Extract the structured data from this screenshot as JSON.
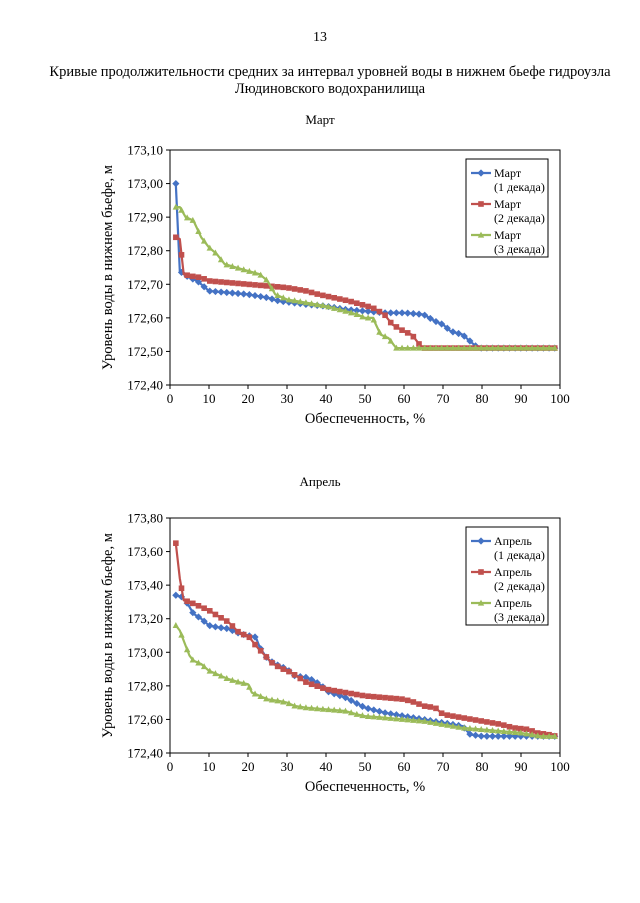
{
  "page_number": "13",
  "document_title": "Кривые продолжительности средних за интервал уровней воды в нижнем бьефе гидроузла Людиновского водохранилища",
  "chart_data": [
    {
      "type": "line",
      "title": "Март",
      "xlabel": "Обеспеченность, %",
      "ylabel": "Уровень воды в нижнем бьефе, м",
      "xlim": [
        0,
        100
      ],
      "ylim": [
        172.4,
        173.1
      ],
      "xticks": [
        0,
        10,
        20,
        30,
        40,
        50,
        60,
        70,
        80,
        90,
        100
      ],
      "yticks": [
        172.4,
        172.5,
        172.6,
        172.7,
        172.8,
        172.9,
        173.0,
        173.1
      ],
      "xtick_labels": [
        "0",
        "10",
        "20",
        "30",
        "40",
        "50",
        "60",
        "70",
        "80",
        "90",
        "100"
      ],
      "ytick_labels": [
        "172,40",
        "172,50",
        "172,60",
        "172,70",
        "172,80",
        "172,90",
        "173,00",
        "173,10"
      ],
      "grid": false,
      "legend": "top-right",
      "series": [
        {
          "name": "Март (1 декада)",
          "legend_lines": [
            "Март",
            "(1 декада)"
          ],
          "color": "#4472C4",
          "marker": "diamond",
          "points": [
            [
              1.5,
              173.0
            ],
            [
              2.5,
              172.74
            ],
            [
              3.5,
              172.73
            ],
            [
              5,
              172.72
            ],
            [
              7,
              172.71
            ],
            [
              9,
              172.69
            ],
            [
              10,
              172.68
            ],
            [
              15,
              172.675
            ],
            [
              20,
              172.67
            ],
            [
              25,
              172.66
            ],
            [
              28,
              172.65
            ],
            [
              35,
              172.64
            ],
            [
              40,
              172.635
            ],
            [
              45,
              172.625
            ],
            [
              50,
              172.62
            ],
            [
              55,
              172.615
            ],
            [
              60,
              172.615
            ],
            [
              65,
              172.61
            ],
            [
              68,
              172.59
            ],
            [
              70,
              172.58
            ],
            [
              72,
              172.56
            ],
            [
              75,
              172.55
            ],
            [
              77,
              172.53
            ],
            [
              79,
              172.51
            ],
            [
              85,
              172.51
            ],
            [
              90,
              172.51
            ],
            [
              95,
              172.51
            ],
            [
              99,
              172.51
            ]
          ]
        },
        {
          "name": "Март (2 декада)",
          "legend_lines": [
            "Март",
            "(2 декада)"
          ],
          "color": "#C0504D",
          "marker": "square",
          "points": [
            [
              1.5,
              172.84
            ],
            [
              2.5,
              172.835
            ],
            [
              3.5,
              172.73
            ],
            [
              5,
              172.725
            ],
            [
              8,
              172.72
            ],
            [
              10,
              172.71
            ],
            [
              15,
              172.705
            ],
            [
              20,
              172.7
            ],
            [
              25,
              172.695
            ],
            [
              30,
              172.69
            ],
            [
              35,
              172.68
            ],
            [
              38,
              172.67
            ],
            [
              42,
              172.66
            ],
            [
              46,
              172.65
            ],
            [
              49,
              172.64
            ],
            [
              52,
              172.63
            ],
            [
              55,
              172.61
            ],
            [
              57,
              172.58
            ],
            [
              60,
              172.56
            ],
            [
              62,
              172.55
            ],
            [
              64,
              172.52
            ],
            [
              65,
              172.51
            ],
            [
              70,
              172.51
            ],
            [
              80,
              172.51
            ],
            [
              90,
              172.51
            ],
            [
              99,
              172.51
            ]
          ]
        },
        {
          "name": "Март (3 декада)",
          "legend_lines": [
            "Март",
            "(3 декада)"
          ],
          "color": "#9BBB59",
          "marker": "triangle",
          "points": [
            [
              1.5,
              172.93
            ],
            [
              2.5,
              172.93
            ],
            [
              4,
              172.9
            ],
            [
              6,
              172.89
            ],
            [
              8,
              172.84
            ],
            [
              10,
              172.81
            ],
            [
              12,
              172.79
            ],
            [
              14,
              172.76
            ],
            [
              17,
              172.75
            ],
            [
              20,
              172.74
            ],
            [
              23,
              172.73
            ],
            [
              25,
              172.71
            ],
            [
              27,
              172.67
            ],
            [
              30,
              172.655
            ],
            [
              35,
              172.645
            ],
            [
              40,
              172.635
            ],
            [
              45,
              172.62
            ],
            [
              48,
              172.61
            ],
            [
              50,
              172.6
            ],
            [
              52,
              172.6
            ],
            [
              54,
              172.55
            ],
            [
              56,
              172.54
            ],
            [
              58,
              172.51
            ],
            [
              65,
              172.51
            ],
            [
              75,
              172.51
            ],
            [
              85,
              172.51
            ],
            [
              99,
              172.51
            ]
          ]
        }
      ]
    },
    {
      "type": "line",
      "title": "Апрель",
      "xlabel": "Обеспеченность, %",
      "ylabel": "Уровень воды в нижнем бьефе, м",
      "xlim": [
        0,
        100
      ],
      "ylim": [
        172.4,
        173.8
      ],
      "xticks": [
        0,
        10,
        20,
        30,
        40,
        50,
        60,
        70,
        80,
        90,
        100
      ],
      "yticks": [
        172.4,
        172.6,
        172.8,
        173.0,
        173.2,
        173.4,
        173.6,
        173.8
      ],
      "xtick_labels": [
        "0",
        "10",
        "20",
        "30",
        "40",
        "50",
        "60",
        "70",
        "80",
        "90",
        "100"
      ],
      "ytick_labels": [
        "172,40",
        "172,60",
        "172,80",
        "173,00",
        "173,20",
        "173,40",
        "173,60",
        "173,80"
      ],
      "grid": false,
      "legend": "top-right",
      "series": [
        {
          "name": "Апрель (1 декада)",
          "legend_lines": [
            "Апрель",
            "(1 декада)"
          ],
          "color": "#4472C4",
          "marker": "diamond",
          "points": [
            [
              1.5,
              173.34
            ],
            [
              3,
              173.33
            ],
            [
              4.5,
              173.29
            ],
            [
              6,
              173.23
            ],
            [
              8,
              173.2
            ],
            [
              10,
              173.16
            ],
            [
              12,
              173.15
            ],
            [
              15,
              173.14
            ],
            [
              18,
              173.11
            ],
            [
              20,
              173.1
            ],
            [
              22,
              173.09
            ],
            [
              23,
              173.03
            ],
            [
              25,
              172.96
            ],
            [
              27,
              172.93
            ],
            [
              30,
              172.9
            ],
            [
              32,
              172.86
            ],
            [
              35,
              172.85
            ],
            [
              37,
              172.83
            ],
            [
              39,
              172.8
            ],
            [
              40,
              172.77
            ],
            [
              45,
              172.73
            ],
            [
              50,
              172.67
            ],
            [
              55,
              172.64
            ],
            [
              60,
              172.62
            ],
            [
              65,
              172.6
            ],
            [
              70,
              172.58
            ],
            [
              75,
              172.56
            ],
            [
              77,
              172.51
            ],
            [
              80,
              172.5
            ],
            [
              90,
              172.5
            ],
            [
              99,
              172.5
            ]
          ]
        },
        {
          "name": "Апрель (2 декада)",
          "legend_lines": [
            "Апрель",
            "(2 декада)"
          ],
          "color": "#C0504D",
          "marker": "square",
          "points": [
            [
              1.5,
              173.65
            ],
            [
              2.5,
              173.44
            ],
            [
              3.5,
              173.31
            ],
            [
              5,
              173.3
            ],
            [
              8,
              173.27
            ],
            [
              10,
              173.25
            ],
            [
              12,
              173.22
            ],
            [
              15,
              173.18
            ],
            [
              18,
              173.11
            ],
            [
              20,
              173.1
            ],
            [
              22,
              173.04
            ],
            [
              24,
              172.99
            ],
            [
              26,
              172.94
            ],
            [
              28,
              172.91
            ],
            [
              31,
              172.88
            ],
            [
              35,
              172.82
            ],
            [
              40,
              172.78
            ],
            [
              45,
              172.76
            ],
            [
              50,
              172.74
            ],
            [
              55,
              172.73
            ],
            [
              60,
              172.72
            ],
            [
              63,
              172.7
            ],
            [
              65,
              172.68
            ],
            [
              68,
              172.67
            ],
            [
              70,
              172.63
            ],
            [
              75,
              172.61
            ],
            [
              80,
              172.59
            ],
            [
              85,
              172.57
            ],
            [
              88,
              172.55
            ],
            [
              92,
              172.54
            ],
            [
              94,
              172.52
            ],
            [
              97,
              172.51
            ],
            [
              99,
              172.5
            ]
          ]
        },
        {
          "name": "Апрель (3 декада)",
          "legend_lines": [
            "Апрель",
            "(3 декада)"
          ],
          "color": "#9BBB59",
          "marker": "triangle",
          "points": [
            [
              1.5,
              173.16
            ],
            [
              2.5,
              173.13
            ],
            [
              4,
              173.04
            ],
            [
              5,
              172.98
            ],
            [
              6,
              172.95
            ],
            [
              8,
              172.93
            ],
            [
              10,
              172.89
            ],
            [
              12,
              172.87
            ],
            [
              15,
              172.84
            ],
            [
              18,
              172.82
            ],
            [
              20,
              172.81
            ],
            [
              21,
              172.76
            ],
            [
              23,
              172.74
            ],
            [
              25,
              172.72
            ],
            [
              28,
              172.71
            ],
            [
              30,
              172.7
            ],
            [
              32,
              172.68
            ],
            [
              35,
              172.67
            ],
            [
              40,
              172.66
            ],
            [
              45,
              172.65
            ],
            [
              48,
              172.63
            ],
            [
              50,
              172.62
            ],
            [
              55,
              172.61
            ],
            [
              60,
              172.6
            ],
            [
              65,
              172.59
            ],
            [
              70,
              172.57
            ],
            [
              75,
              172.55
            ],
            [
              80,
              172.54
            ],
            [
              85,
              172.53
            ],
            [
              90,
              172.52
            ],
            [
              95,
              172.5
            ],
            [
              99,
              172.5
            ]
          ]
        }
      ]
    }
  ]
}
